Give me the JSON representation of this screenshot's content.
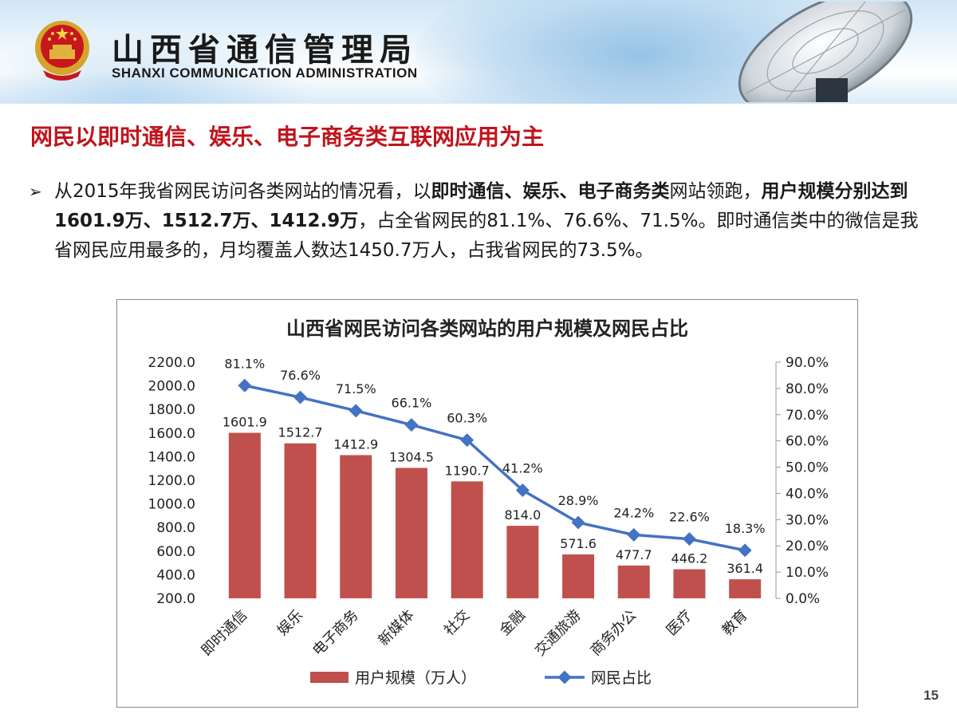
{
  "header": {
    "title_cn": "山西省通信管理局",
    "title_en": "SHANXI COMMUNICATION ADMINISTRATION"
  },
  "slide": {
    "heading": "网民以即时通信、娱乐、电子商务类互联网应用为主",
    "paragraph": {
      "bullet": "➢",
      "p1": "从2015年我省网民访问各类网站的情况看，以",
      "b1": "即时通信、娱乐、电子商务类",
      "p2": "网站领跑，",
      "b2": "用户规模分别达到1601.9万、1512.7万、1412.9万",
      "p3": "，占全省网民的81.1%、76.6%、71.5%。即时通信类中的微信是我省网民应用最多的，月均覆盖人数达1450.7万人，占我省网民的73.5%。"
    },
    "page_number": "15"
  },
  "colors": {
    "heading": "#c0141c",
    "bar": "#c0504d",
    "line": "#4472c4"
  },
  "chart_data": {
    "type": "bar",
    "title": "山西省网民访问各类网站的用户规模及网民占比",
    "categories": [
      "即时通信",
      "娱乐",
      "电子商务",
      "新媒体",
      "社交",
      "金融",
      "交通旅游",
      "商务办公",
      "医疗",
      "教育"
    ],
    "series": [
      {
        "name": "用户规模（万人）",
        "type": "bar",
        "axis": "left",
        "values": [
          1601.9,
          1512.7,
          1412.9,
          1304.5,
          1190.7,
          814.0,
          571.6,
          477.7,
          446.2,
          361.4
        ],
        "labels": [
          "1601.9",
          "1512.7",
          "1412.9",
          "1304.5",
          "1190.7",
          "814.0",
          "571.6",
          "477.7",
          "446.2",
          "361.4"
        ]
      },
      {
        "name": "网民占比",
        "type": "line",
        "axis": "right",
        "values": [
          81.1,
          76.6,
          71.5,
          66.1,
          60.3,
          41.2,
          28.9,
          24.2,
          22.6,
          18.3
        ],
        "labels": [
          "81.1%",
          "76.6%",
          "71.5%",
          "66.1%",
          "60.3%",
          "41.2%",
          "28.9%",
          "24.2%",
          "22.6%",
          "18.3%"
        ]
      }
    ],
    "y_left": {
      "range": [
        200,
        2200
      ],
      "ticks": [
        "2200.0",
        "2000.0",
        "1800.0",
        "1600.0",
        "1400.0",
        "1200.0",
        "1000.0",
        "800.0",
        "600.0",
        "400.0",
        "200.0"
      ]
    },
    "y_right": {
      "range": [
        0,
        90
      ],
      "ticks": [
        "90.0%",
        "80.0%",
        "70.0%",
        "60.0%",
        "50.0%",
        "40.0%",
        "30.0%",
        "20.0%",
        "10.0%",
        "0.0%"
      ]
    },
    "legend_position": "bottom",
    "grid": false
  }
}
